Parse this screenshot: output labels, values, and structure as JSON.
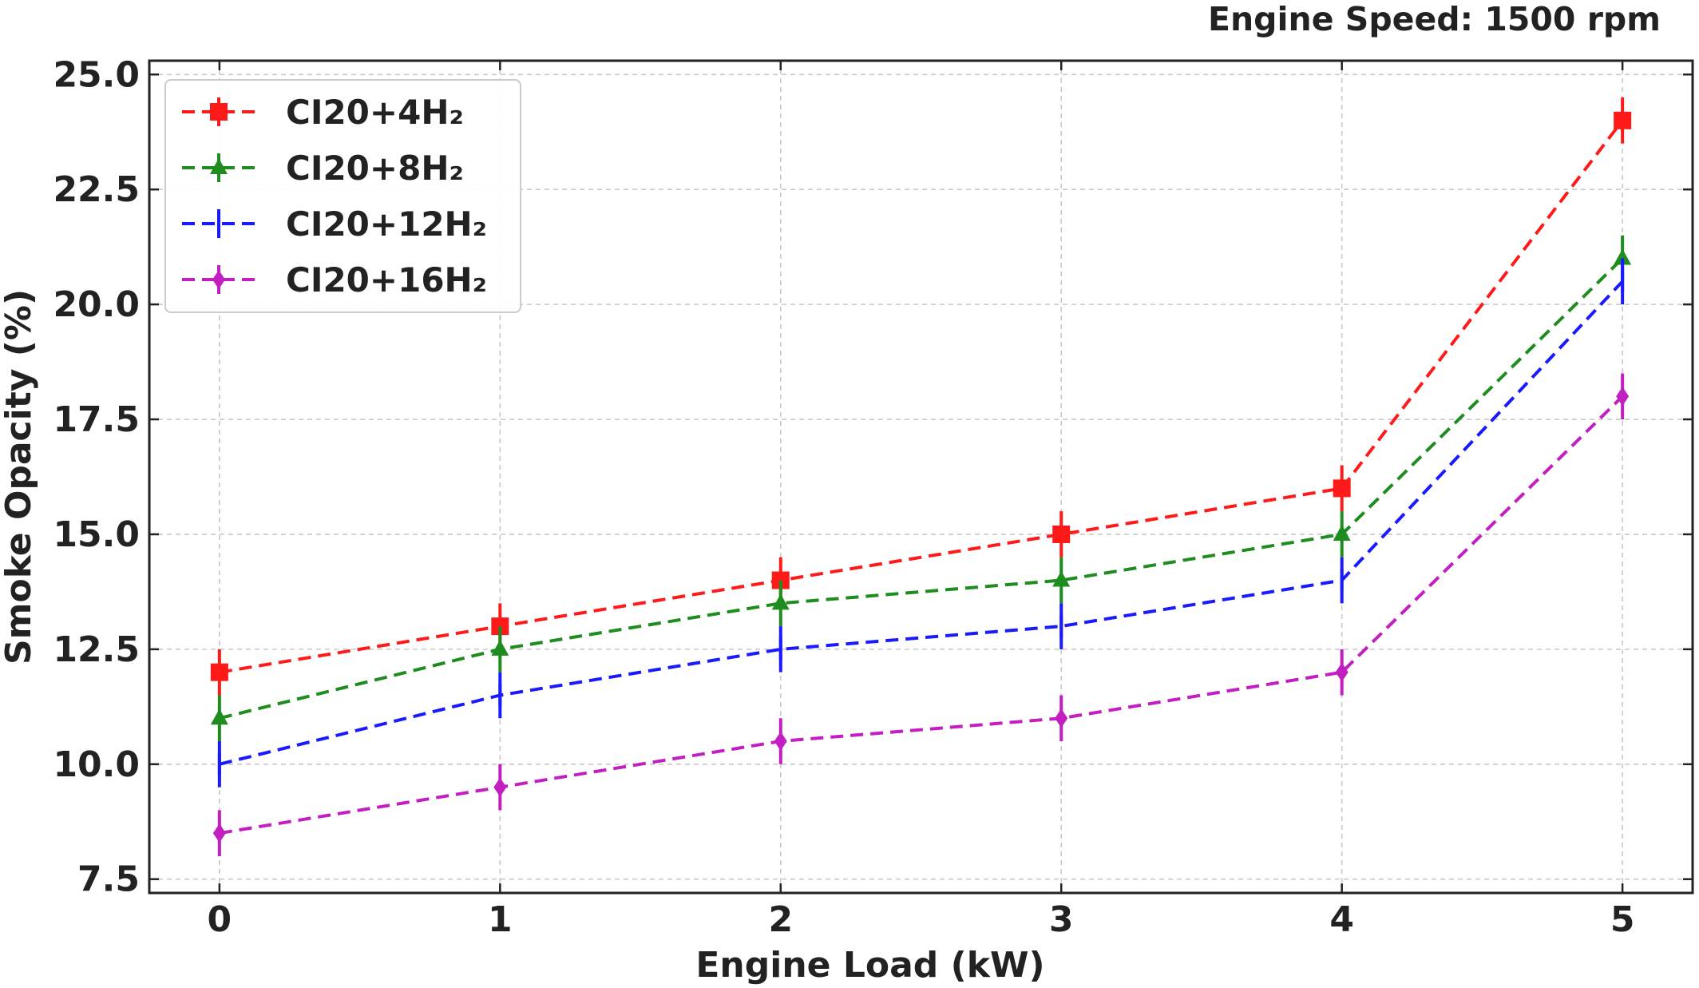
{
  "chart_data": {
    "type": "line",
    "annotation": "Engine Speed: 1500 rpm",
    "xlabel": "Engine Load (kW)",
    "ylabel": "Smoke Opacity (%)",
    "x": [
      0,
      1,
      2,
      3,
      4,
      5
    ],
    "x_ticks": [
      "0",
      "1",
      "2",
      "3",
      "4",
      "5"
    ],
    "y_ticks": [
      "7.5",
      "10.0",
      "12.5",
      "15.0",
      "17.5",
      "20.0",
      "22.5",
      "25.0"
    ],
    "y_tick_values": [
      7.5,
      10.0,
      12.5,
      15.0,
      17.5,
      20.0,
      22.5,
      25.0
    ],
    "xlim": [
      -0.25,
      5.25
    ],
    "ylim": [
      7.2,
      25.3
    ],
    "grid": true,
    "legend_position": "top-left",
    "line_style": "dashed",
    "series": [
      {
        "name": "CI20+4H₂",
        "color": "#ff1a1a",
        "marker": "square",
        "values": [
          12.0,
          13.0,
          14.0,
          15.0,
          16.0,
          24.0
        ],
        "error": [
          0.5,
          0.5,
          0.5,
          0.5,
          0.5,
          0.5
        ]
      },
      {
        "name": "CI20+8H₂",
        "color": "#1e8c1e",
        "marker": "triangle",
        "values": [
          11.0,
          12.5,
          13.5,
          14.0,
          15.0,
          21.0
        ],
        "error": [
          0.5,
          0.5,
          0.5,
          0.5,
          0.5,
          0.5
        ]
      },
      {
        "name": "CI20+12H₂",
        "color": "#1a1aff",
        "marker": "vline",
        "values": [
          10.0,
          11.5,
          12.5,
          13.0,
          14.0,
          20.5
        ],
        "error": [
          0.5,
          0.5,
          0.5,
          0.5,
          0.5,
          0.5
        ]
      },
      {
        "name": "CI20+16H₂",
        "color": "#c21ec2",
        "marker": "diamond",
        "values": [
          8.5,
          9.5,
          10.5,
          11.0,
          12.0,
          18.0
        ],
        "error": [
          0.5,
          0.5,
          0.5,
          0.5,
          0.5,
          0.5
        ]
      }
    ]
  }
}
